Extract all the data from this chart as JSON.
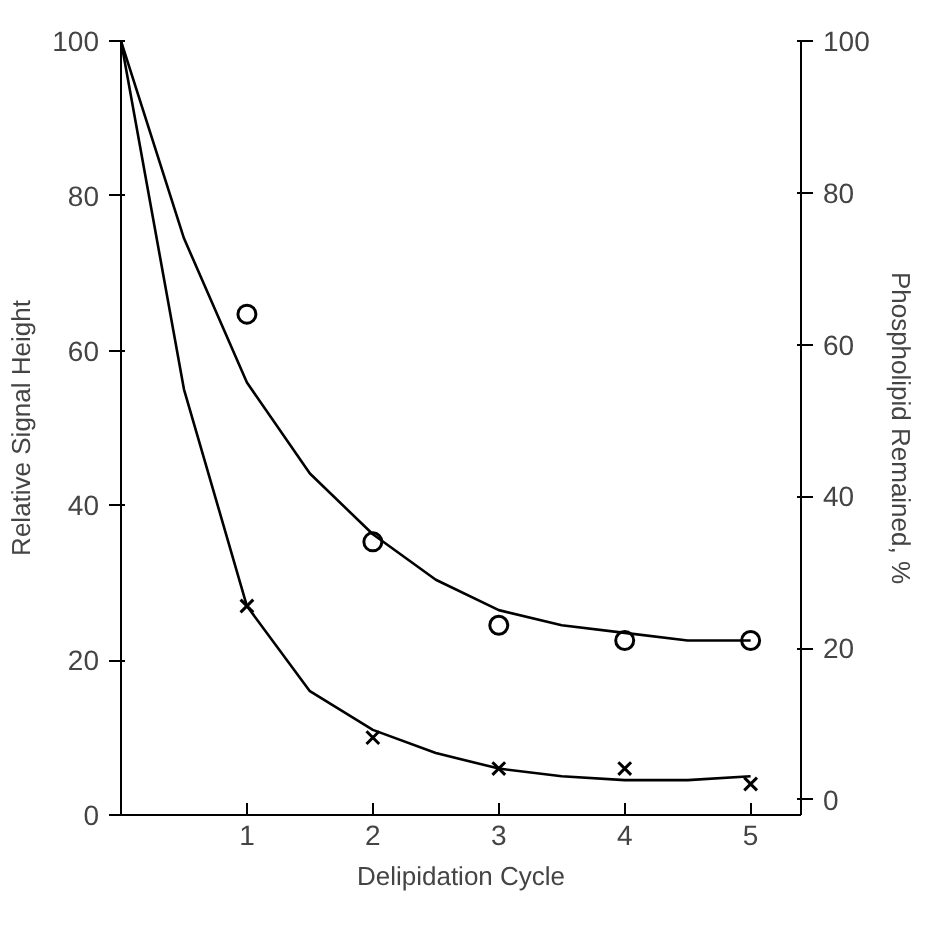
{
  "chart_data": {
    "type": "scatter",
    "xlabel": "Delipidation Cycle",
    "ylabel": "Relative Signal Height",
    "y2label": "Phospholipid Remained, %",
    "xlim": [
      0,
      5.4
    ],
    "xticks": [
      1,
      2,
      3,
      4,
      5
    ],
    "ylim": [
      0,
      100
    ],
    "yticks": [
      0,
      20,
      40,
      60,
      80,
      100
    ],
    "y2lim": [
      -2,
      100
    ],
    "y2ticks": [
      0,
      20,
      40,
      60,
      80,
      100
    ],
    "grid": false,
    "series": [
      {
        "marker": "circle",
        "axis": "y2",
        "color": "#000000",
        "x": [
          1,
          2,
          3,
          4,
          5
        ],
        "values": [
          64,
          34,
          23,
          21,
          21
        ]
      },
      {
        "marker": "cross",
        "color": "#000000",
        "x": [
          1,
          2,
          3,
          4,
          5
        ],
        "values": [
          27,
          10,
          6,
          6,
          4
        ]
      },
      {
        "type": "line",
        "marker": "none",
        "line_style": "solid",
        "axis": "y2",
        "color": "#000000",
        "x": [
          0,
          0.5,
          1,
          1.5,
          2,
          2.5,
          3,
          3.5,
          4,
          4.5,
          5
        ],
        "values": [
          100,
          74,
          55,
          43,
          35,
          29,
          25,
          23,
          22,
          21,
          21
        ]
      },
      {
        "type": "line",
        "marker": "none",
        "line_style": "solid",
        "color": "#000000",
        "x": [
          0,
          0.5,
          1,
          1.5,
          2,
          2.5,
          3,
          3.5,
          4,
          4.5,
          5
        ],
        "values": [
          100,
          55,
          27,
          16,
          11,
          8,
          6,
          5,
          4.5,
          4.5,
          5
        ]
      }
    ]
  }
}
